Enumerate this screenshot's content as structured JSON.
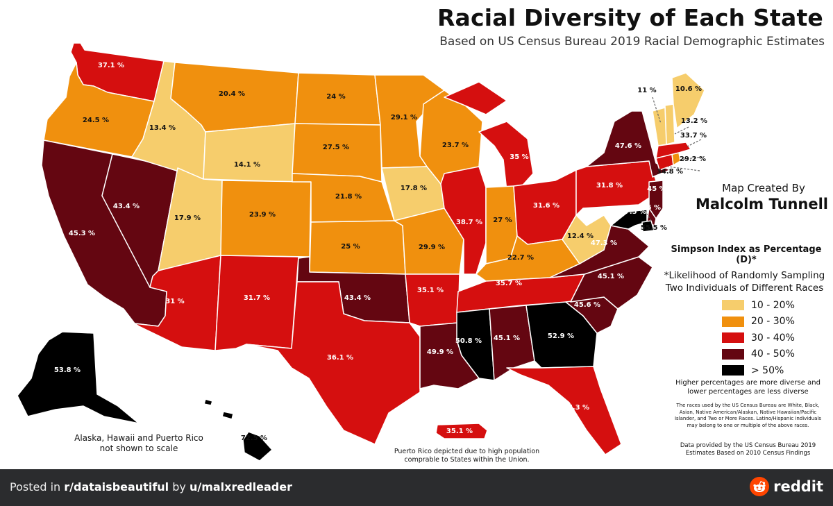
{
  "title": "Racial Diversity of Each State",
  "subtitle": "Based on US Census Bureau 2019 Racial Demographic Estimates",
  "credit": {
    "label": "Map Created By",
    "name": "Malcolm Tunnell"
  },
  "legend": {
    "title": "Simpson Index as Percentage (D)*",
    "note": "*Likelihood of Randomly Sampling Two Individuals of Different Races",
    "items": [
      {
        "label": "10 - 20%",
        "color": "#f6cd6c"
      },
      {
        "label": "20 - 30%",
        "color": "#f0900e"
      },
      {
        "label": "30 - 40%",
        "color": "#d50f0f"
      },
      {
        "label": "40 - 50%",
        "color": "#640611"
      },
      {
        "label": "> 50%",
        "color": "#000000"
      }
    ]
  },
  "explanation": "Higher percentages are more diverse and lower percentages are less diverse",
  "races_note": "The races used by the US Census Bureau are White, Black, Asian, Native American/Alaskan, Native Hawaiian/Pacific Islander, and Two or More Races. Latino/Hispanic individuals may belong to one or multiple of the above races.",
  "source": "Data provided by the US Census Bureau 2019 Estimates Based on 2010 Census Findings",
  "notes": {
    "alaska_hawaii": "Alaska, Hawaii and Puerto Rico not shown to scale",
    "puerto_rico": "Puerto Rico depicted due to high population comprable to States within the Union."
  },
  "states": [
    {
      "name": "WA",
      "value": "37.1 %",
      "bin": 2
    },
    {
      "name": "OR",
      "value": "24.5 %",
      "bin": 1
    },
    {
      "name": "CA",
      "value": "45.3 %",
      "bin": 3
    },
    {
      "name": "NV",
      "value": "43.4 %",
      "bin": 3
    },
    {
      "name": "ID",
      "value": "13.4 %",
      "bin": 0
    },
    {
      "name": "MT",
      "value": "20.4 %",
      "bin": 1
    },
    {
      "name": "WY",
      "value": "14.1 %",
      "bin": 0
    },
    {
      "name": "UT",
      "value": "17.9 %",
      "bin": 0
    },
    {
      "name": "AZ",
      "value": "31 %",
      "bin": 2
    },
    {
      "name": "CO",
      "value": "23.9 %",
      "bin": 1
    },
    {
      "name": "NM",
      "value": "31.7 %",
      "bin": 2
    },
    {
      "name": "ND",
      "value": "24 %",
      "bin": 1
    },
    {
      "name": "SD",
      "value": "27.5 %",
      "bin": 1
    },
    {
      "name": "NE",
      "value": "21.8 %",
      "bin": 1
    },
    {
      "name": "KS",
      "value": "25 %",
      "bin": 1
    },
    {
      "name": "OK",
      "value": "43.4 %",
      "bin": 3
    },
    {
      "name": "TX",
      "value": "36.1 %",
      "bin": 2
    },
    {
      "name": "MN",
      "value": "29.1 %",
      "bin": 1
    },
    {
      "name": "IA",
      "value": "17.8 %",
      "bin": 0
    },
    {
      "name": "MO",
      "value": "29.9 %",
      "bin": 1
    },
    {
      "name": "AR",
      "value": "35.1 %",
      "bin": 2
    },
    {
      "name": "LA",
      "value": "49.9 %",
      "bin": 3
    },
    {
      "name": "WI",
      "value": "23.7 %",
      "bin": 1
    },
    {
      "name": "IL",
      "value": "38.7 %",
      "bin": 2
    },
    {
      "name": "MI",
      "value": "35 %",
      "bin": 2
    },
    {
      "name": "IN",
      "value": "27 %",
      "bin": 1
    },
    {
      "name": "OH",
      "value": "31.6 %",
      "bin": 2
    },
    {
      "name": "KY",
      "value": "22.7 %",
      "bin": 1
    },
    {
      "name": "TN",
      "value": "35.7 %",
      "bin": 2
    },
    {
      "name": "MS",
      "value": "50.8 %",
      "bin": 4
    },
    {
      "name": "AL",
      "value": "45.1 %",
      "bin": 3
    },
    {
      "name": "GA",
      "value": "52.9 %",
      "bin": 4
    },
    {
      "name": "FL",
      "value": "37.3 %",
      "bin": 2
    },
    {
      "name": "SC",
      "value": "45.6 %",
      "bin": 3
    },
    {
      "name": "NC",
      "value": "45.1 %",
      "bin": 3
    },
    {
      "name": "VA",
      "value": "47.3 %",
      "bin": 3
    },
    {
      "name": "WV",
      "value": "12.4 %",
      "bin": 0
    },
    {
      "name": "PA",
      "value": "31.8 %",
      "bin": 2
    },
    {
      "name": "NY",
      "value": "47.6 %",
      "bin": 3
    },
    {
      "name": "NJ",
      "value": "45 %",
      "bin": 3
    },
    {
      "name": "DE",
      "value": "46.5 %",
      "bin": 3
    },
    {
      "name": "MD",
      "value": "57.5 %",
      "bin": 4
    },
    {
      "name": "DC",
      "value": "55.5 %",
      "bin": 4
    },
    {
      "name": "CT",
      "value": "34.8 %",
      "bin": 2
    },
    {
      "name": "RI",
      "value": "29.2 %",
      "bin": 1
    },
    {
      "name": "MA",
      "value": "33.7 %",
      "bin": 2
    },
    {
      "name": "NH",
      "value": "13.2 %",
      "bin": 0
    },
    {
      "name": "VT",
      "value": "11 %",
      "bin": 0
    },
    {
      "name": "ME",
      "value": "10.6 %",
      "bin": 0
    },
    {
      "name": "AK",
      "value": "53.8 %",
      "bin": 4
    },
    {
      "name": "HI",
      "value": "72.5 %",
      "bin": 4
    },
    {
      "name": "PR",
      "value": "35.1 %",
      "bin": 2
    }
  ],
  "footer": {
    "posted_in": "Posted in",
    "subreddit": "r/dataisbeautiful",
    "by": "by",
    "user": "u/malxredleader",
    "brand": "reddit"
  }
}
